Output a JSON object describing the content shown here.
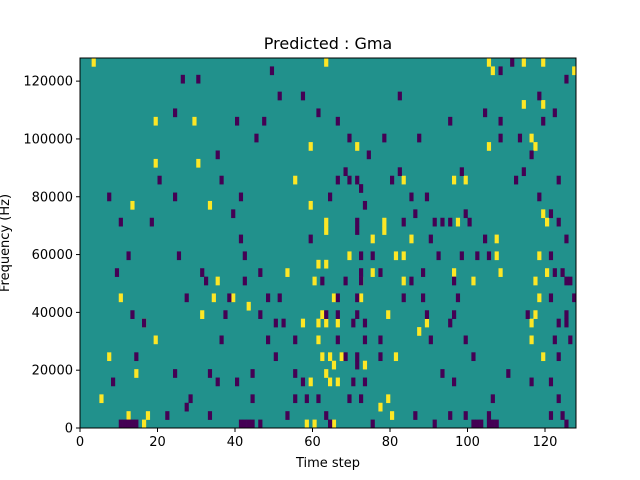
{
  "chart_data": {
    "type": "heatmap",
    "title": "Predicted : Gma",
    "xlabel": "Time step",
    "ylabel": "Frequency (Hz)",
    "xlim": [
      0,
      128
    ],
    "ylim": [
      0,
      128000
    ],
    "x_ticks": [
      0,
      20,
      40,
      60,
      80,
      100,
      120
    ],
    "y_ticks": [
      0,
      20000,
      40000,
      60000,
      80000,
      100000,
      120000
    ],
    "n_time_steps": 128,
    "n_freq_bins": 44,
    "freq_bin_width_hz": 2909,
    "colors": {
      "background": "#21918c",
      "high": "#fde725",
      "low": "#440154",
      "axes": "#000000"
    },
    "grid": false,
    "high_cells": [
      [
        3,
        128000
      ],
      [
        63,
        128000
      ],
      [
        105,
        128000
      ],
      [
        114,
        128000
      ],
      [
        119,
        128000
      ],
      [
        106,
        123000
      ],
      [
        127,
        123000
      ],
      [
        114,
        113000
      ],
      [
        119,
        113000
      ],
      [
        19,
        107000
      ],
      [
        29,
        107000
      ],
      [
        59,
        96000
      ],
      [
        71,
        96000
      ],
      [
        105,
        96000
      ],
      [
        117,
        96000
      ],
      [
        19,
        91000
      ],
      [
        30,
        91000
      ],
      [
        55,
        87000
      ],
      [
        83,
        87000
      ],
      [
        96,
        87000
      ],
      [
        99,
        87000
      ],
      [
        13,
        78000
      ],
      [
        33,
        78000
      ],
      [
        59,
        78000
      ],
      [
        63,
        72000
      ],
      [
        97,
        72000
      ],
      [
        78,
        67000
      ],
      [
        63,
        67000
      ],
      [
        81,
        61000
      ],
      [
        83,
        61000
      ],
      [
        69,
        61000
      ],
      [
        61,
        56000
      ],
      [
        63,
        56000
      ],
      [
        83,
        52000
      ],
      [
        39,
        46000
      ],
      [
        43,
        41000
      ],
      [
        63,
        37000
      ],
      [
        66,
        37000
      ],
      [
        89,
        37000
      ],
      [
        87,
        32000
      ],
      [
        64,
        26000
      ],
      [
        67,
        26000
      ],
      [
        65,
        21000
      ],
      [
        73,
        21000
      ],
      [
        59,
        16000
      ],
      [
        66,
        16000
      ],
      [
        79,
        11000
      ],
      [
        77,
        6000
      ],
      [
        58,
        0
      ],
      [
        16,
        0
      ],
      [
        60,
        0
      ],
      [
        65,
        0
      ],
      [
        60,
        50000
      ],
      [
        65,
        45000
      ],
      [
        62,
        40000
      ],
      [
        61,
        35000
      ],
      [
        61,
        30000
      ],
      [
        62,
        25000
      ],
      [
        63,
        20000
      ],
      [
        64,
        15000
      ],
      [
        117,
        50000
      ],
      [
        118,
        45000
      ],
      [
        117,
        40000
      ],
      [
        116,
        35000
      ],
      [
        116,
        30000
      ],
      [
        119,
        25000
      ],
      [
        118,
        60000
      ],
      [
        120,
        55000
      ],
      [
        119,
        75000
      ],
      [
        120,
        70000
      ],
      [
        116,
        100000
      ],
      [
        14,
        20000
      ],
      [
        16,
        35000
      ],
      [
        17,
        5000
      ],
      [
        19,
        30000
      ],
      [
        80,
        5000
      ],
      [
        81,
        25000
      ],
      [
        79,
        40000
      ],
      [
        72,
        45000
      ],
      [
        72,
        50000
      ],
      [
        75,
        55000
      ],
      [
        75,
        65000
      ],
      [
        78,
        70000
      ],
      [
        107,
        60000
      ],
      [
        107,
        65000
      ],
      [
        108,
        55000
      ],
      [
        10,
        45000
      ],
      [
        12,
        5000
      ],
      [
        5,
        10000
      ],
      [
        7,
        25000
      ],
      [
        35,
        50000
      ],
      [
        34,
        45000
      ],
      [
        31,
        40000
      ],
      [
        53,
        55000
      ],
      [
        57,
        35000
      ],
      [
        85,
        65000
      ],
      [
        96,
        55000
      ],
      [
        101,
        50000
      ]
    ],
    "low_cells": [
      [
        13,
        0
      ],
      [
        14,
        0
      ],
      [
        12,
        0
      ],
      [
        11,
        0
      ],
      [
        10,
        0
      ],
      [
        41,
        0
      ],
      [
        42,
        0
      ],
      [
        43,
        0
      ],
      [
        44,
        0
      ],
      [
        101,
        0
      ],
      [
        102,
        0
      ],
      [
        105,
        0
      ],
      [
        106,
        0
      ],
      [
        107,
        0
      ],
      [
        125,
        0
      ],
      [
        64,
        0
      ],
      [
        46,
        0
      ],
      [
        91,
        0
      ],
      [
        75,
        0
      ],
      [
        103,
        0
      ],
      [
        105,
        5000
      ],
      [
        33,
        5000
      ],
      [
        27,
        8000
      ],
      [
        58,
        10000
      ],
      [
        72,
        11000
      ],
      [
        73,
        16000
      ],
      [
        71,
        21000
      ],
      [
        71,
        25000
      ],
      [
        73,
        30000
      ],
      [
        77,
        30000
      ],
      [
        73,
        37000
      ],
      [
        71,
        40000
      ],
      [
        71,
        45000
      ],
      [
        72,
        50000
      ],
      [
        72,
        55000
      ],
      [
        72,
        61000
      ],
      [
        71,
        67000
      ],
      [
        71,
        72000
      ],
      [
        73,
        76000
      ],
      [
        72,
        82000
      ],
      [
        69,
        87000
      ],
      [
        71,
        87000
      ],
      [
        106,
        11000
      ],
      [
        116,
        16000
      ],
      [
        124,
        5000
      ],
      [
        86,
        5000
      ],
      [
        95,
        5000
      ],
      [
        99,
        5000
      ],
      [
        121,
        5000
      ],
      [
        7,
        80000
      ],
      [
        10,
        70000
      ],
      [
        9,
        55000
      ],
      [
        12,
        60000
      ],
      [
        24,
        80000
      ],
      [
        32,
        50000
      ],
      [
        31,
        55000
      ],
      [
        37,
        40000
      ],
      [
        38,
        45000
      ],
      [
        42,
        50000
      ],
      [
        44,
        20000
      ],
      [
        48,
        30000
      ],
      [
        50,
        25000
      ],
      [
        33,
        20000
      ],
      [
        35,
        15000
      ],
      [
        53,
        5000
      ],
      [
        55,
        10000
      ],
      [
        77,
        25000
      ],
      [
        88,
        45000
      ],
      [
        95,
        35000
      ],
      [
        99,
        30000
      ],
      [
        101,
        26000
      ],
      [
        102,
        60000
      ],
      [
        104,
        65000
      ],
      [
        110,
        20000
      ],
      [
        115,
        40000
      ],
      [
        121,
        45000
      ],
      [
        123,
        35000
      ],
      [
        122,
        30000
      ],
      [
        123,
        25000
      ],
      [
        125,
        50000
      ],
      [
        125,
        40000
      ],
      [
        121,
        60000
      ],
      [
        122,
        55000
      ],
      [
        121,
        15000
      ],
      [
        123,
        10000
      ],
      [
        104,
        110000
      ],
      [
        108,
        105000
      ],
      [
        108,
        100000
      ],
      [
        95,
        105000
      ],
      [
        100,
        70000
      ],
      [
        105,
        60000
      ],
      [
        97,
        45000
      ],
      [
        89,
        40000
      ],
      [
        90,
        30000
      ],
      [
        93,
        20000
      ],
      [
        96,
        15000
      ],
      [
        51,
        45000
      ],
      [
        52,
        35000
      ],
      [
        55,
        30000
      ],
      [
        62,
        50000
      ],
      [
        63,
        40000
      ],
      [
        66,
        45000
      ],
      [
        66,
        30000
      ],
      [
        68,
        25000
      ],
      [
        69,
        10000
      ],
      [
        70,
        15000
      ],
      [
        24,
        110000
      ],
      [
        26,
        120000
      ],
      [
        30,
        120000
      ],
      [
        40,
        105000
      ],
      [
        41,
        80000
      ],
      [
        46,
        55000
      ],
      [
        48,
        45000
      ],
      [
        78,
        100000
      ],
      [
        82,
        115000
      ],
      [
        83,
        70000
      ],
      [
        86,
        75000
      ],
      [
        89,
        80000
      ],
      [
        91,
        70000
      ],
      [
        96,
        40000
      ],
      [
        96,
        50000
      ],
      [
        98,
        60000
      ],
      [
        18,
        70000
      ],
      [
        20,
        85000
      ],
      [
        25,
        60000
      ],
      [
        27,
        45000
      ],
      [
        13,
        40000
      ],
      [
        16,
        35000
      ],
      [
        14,
        25000
      ],
      [
        8,
        15000
      ],
      [
        24,
        20000
      ],
      [
        22,
        5000
      ],
      [
        28,
        10000
      ],
      [
        36,
        30000
      ],
      [
        40,
        15000
      ],
      [
        44,
        10000
      ],
      [
        59,
        65000
      ],
      [
        64,
        80000
      ],
      [
        66,
        85000
      ],
      [
        68,
        90000
      ],
      [
        80,
        85000
      ],
      [
        82,
        90000
      ],
      [
        85,
        80000
      ],
      [
        90,
        65000
      ],
      [
        93,
        70000
      ],
      [
        98,
        90000
      ],
      [
        118,
        115000
      ],
      [
        113,
        100000
      ],
      [
        112,
        85000
      ],
      [
        123,
        70000
      ],
      [
        125,
        65000
      ],
      [
        126,
        30000
      ],
      [
        127,
        45000
      ],
      [
        126,
        50000
      ],
      [
        124,
        55000
      ],
      [
        125,
        35000
      ],
      [
        123,
        85000
      ],
      [
        121,
        75000
      ],
      [
        118,
        80000
      ],
      [
        114,
        90000
      ],
      [
        116,
        95000
      ],
      [
        119,
        105000
      ],
      [
        122,
        110000
      ],
      [
        125,
        120000
      ],
      [
        108,
        125000
      ],
      [
        111,
        128000
      ],
      [
        87,
        100000
      ],
      [
        74,
        95000
      ],
      [
        69,
        100000
      ],
      [
        66,
        105000
      ],
      [
        61,
        110000
      ],
      [
        57,
        115000
      ],
      [
        49,
        125000
      ],
      [
        51,
        115000
      ],
      [
        47,
        105000
      ],
      [
        45,
        100000
      ],
      [
        35,
        95000
      ],
      [
        36,
        85000
      ],
      [
        39,
        75000
      ],
      [
        41,
        65000
      ],
      [
        42,
        60000
      ],
      [
        46,
        40000
      ],
      [
        50,
        35000
      ],
      [
        55,
        20000
      ],
      [
        57,
        15000
      ],
      [
        61,
        10000
      ],
      [
        63,
        5000
      ],
      [
        66,
        40000
      ],
      [
        70,
        35000
      ],
      [
        68,
        50000
      ],
      [
        75,
        60000
      ],
      [
        77,
        55000
      ],
      [
        83,
        45000
      ],
      [
        85,
        50000
      ],
      [
        88,
        55000
      ],
      [
        92,
        60000
      ],
      [
        95,
        70000
      ],
      [
        99,
        75000
      ]
    ]
  }
}
